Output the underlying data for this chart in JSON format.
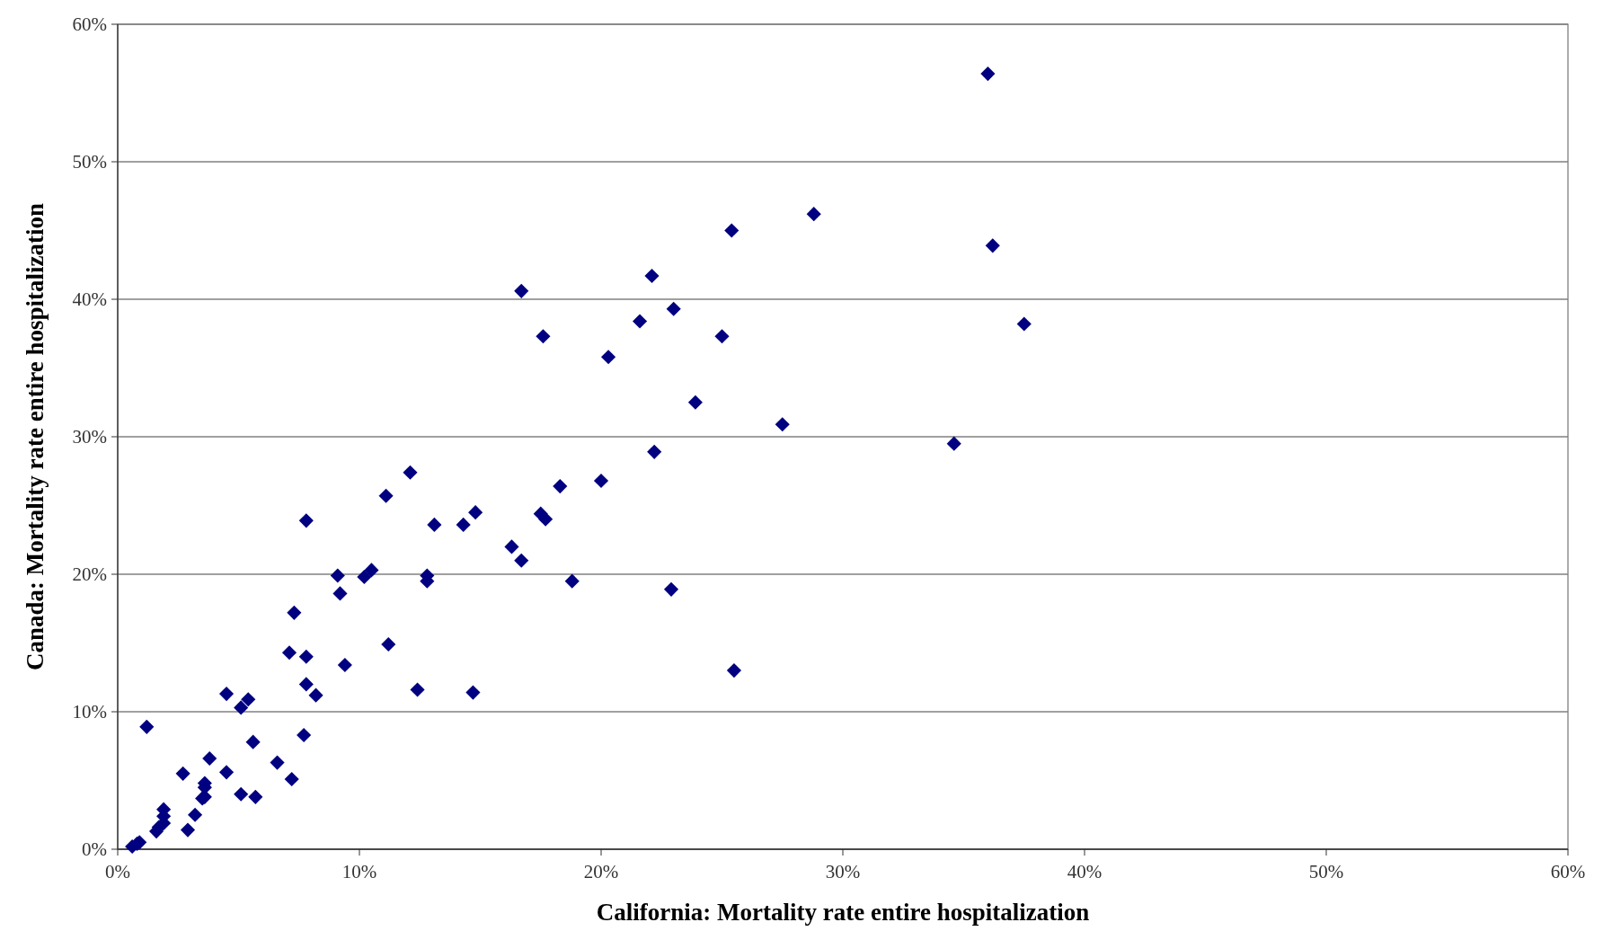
{
  "chart_data": {
    "type": "scatter",
    "xlabel": "California: Mortality rate entire hospitalization",
    "ylabel": "Canada: Mortality rate entire hospitalization",
    "xlim": [
      0,
      60
    ],
    "ylim": [
      0,
      60
    ],
    "xticks": [
      {
        "value": 0,
        "label": "0%"
      },
      {
        "value": 10,
        "label": "10%"
      },
      {
        "value": 20,
        "label": "20%"
      },
      {
        "value": 30,
        "label": "30%"
      },
      {
        "value": 40,
        "label": "40%"
      },
      {
        "value": 50,
        "label": "50%"
      },
      {
        "value": 60,
        "label": "60%"
      }
    ],
    "yticks": [
      {
        "value": 0,
        "label": "0%"
      },
      {
        "value": 10,
        "label": "10%"
      },
      {
        "value": 20,
        "label": "20%"
      },
      {
        "value": 30,
        "label": "30%"
      },
      {
        "value": 40,
        "label": "40%"
      },
      {
        "value": 50,
        "label": "50%"
      },
      {
        "value": 60,
        "label": "60%"
      }
    ],
    "grid": "y",
    "marker": "diamond",
    "series": [
      {
        "color": "#000080",
        "x": [
          36.0,
          28.8,
          25.4,
          36.2,
          22.1,
          16.7,
          21.6,
          23.0,
          37.5,
          25.0,
          17.6,
          20.3,
          23.9,
          27.5,
          34.6,
          22.2,
          12.1,
          18.3,
          20.0,
          11.1,
          14.8,
          17.5,
          17.7,
          7.8,
          13.1,
          14.3,
          16.3,
          16.7,
          9.1,
          10.5,
          10.2,
          12.8,
          12.8,
          18.8,
          9.2,
          22.9,
          7.3,
          11.2,
          7.1,
          7.8,
          9.4,
          25.5,
          7.8,
          12.4,
          14.7,
          4.5,
          8.2,
          5.4,
          5.1,
          1.2,
          7.7,
          5.6,
          3.8,
          6.6,
          2.7,
          4.5,
          7.2,
          3.6,
          3.6,
          5.1,
          5.7,
          3.5,
          3.6,
          1.9,
          1.9,
          3.2,
          1.9,
          1.7,
          1.6,
          2.9,
          0.9,
          0.8,
          0.6
        ],
        "values": [
          56.4,
          46.2,
          45.0,
          43.9,
          41.7,
          40.6,
          38.4,
          39.3,
          38.2,
          37.3,
          37.3,
          35.8,
          32.5,
          30.9,
          29.5,
          28.9,
          27.4,
          26.4,
          26.8,
          25.7,
          24.5,
          24.4,
          24.0,
          23.9,
          23.6,
          23.6,
          22.0,
          21.0,
          19.9,
          20.3,
          19.8,
          19.9,
          19.5,
          19.5,
          18.6,
          18.9,
          17.2,
          14.9,
          14.3,
          14.0,
          13.4,
          13.0,
          12.0,
          11.6,
          11.4,
          11.3,
          11.2,
          10.9,
          10.3,
          8.9,
          8.3,
          7.8,
          6.6,
          6.3,
          5.5,
          5.6,
          5.1,
          4.8,
          4.5,
          4.0,
          3.8,
          3.7,
          3.8,
          2.9,
          2.4,
          2.5,
          1.9,
          1.6,
          1.3,
          1.4,
          0.5,
          0.4,
          0.2
        ]
      }
    ]
  }
}
